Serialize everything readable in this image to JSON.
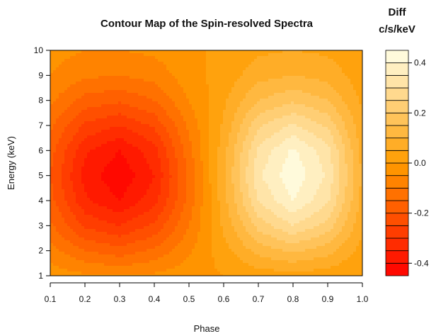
{
  "chart_data": {
    "type": "heatmap",
    "title": "Contour Map of the Spin-resolved Spectra",
    "xlabel": "Phase",
    "ylabel": "Energy (keV)",
    "xlim": [
      0.1,
      1.0
    ],
    "ylim": [
      1,
      10
    ],
    "x_ticks": [
      0.1,
      0.2,
      0.3,
      0.4,
      0.5,
      0.6,
      0.7,
      0.8,
      0.9,
      1.0
    ],
    "x_tick_labels": [
      "0.1",
      "0.2",
      "0.3",
      "0.4",
      "0.5",
      "0.6",
      "0.7",
      "0.8",
      "0.9",
      "1.0"
    ],
    "y_ticks": [
      1,
      2,
      3,
      4,
      5,
      6,
      7,
      8,
      9,
      10
    ],
    "y_tick_labels": [
      "1",
      "2",
      "3",
      "4",
      "5",
      "6",
      "7",
      "8",
      "9",
      "10"
    ],
    "x": [
      0.1,
      0.2,
      0.3,
      0.4,
      0.5,
      0.6,
      0.7,
      0.8,
      0.9,
      1.0
    ],
    "y": [
      1,
      2,
      3,
      4,
      5,
      6,
      7,
      8,
      9,
      10
    ],
    "z": [
      [
        -0.02,
        -0.04,
        -0.05,
        -0.04,
        -0.02,
        0.0,
        0.02,
        0.03,
        0.02,
        0.0
      ],
      [
        -0.08,
        -0.15,
        -0.18,
        -0.14,
        -0.06,
        0.03,
        0.12,
        0.16,
        0.12,
        0.03
      ],
      [
        -0.14,
        -0.26,
        -0.3,
        -0.24,
        -0.1,
        0.06,
        0.22,
        0.3,
        0.23,
        0.06
      ],
      [
        -0.18,
        -0.34,
        -0.4,
        -0.32,
        -0.13,
        0.08,
        0.3,
        0.4,
        0.31,
        0.08
      ],
      [
        -0.2,
        -0.37,
        -0.44,
        -0.35,
        -0.14,
        0.09,
        0.34,
        0.44,
        0.34,
        0.09
      ],
      [
        -0.18,
        -0.34,
        -0.4,
        -0.32,
        -0.12,
        0.08,
        0.31,
        0.41,
        0.32,
        0.08
      ],
      [
        -0.14,
        -0.26,
        -0.3,
        -0.24,
        -0.09,
        0.06,
        0.24,
        0.31,
        0.24,
        0.06
      ],
      [
        -0.09,
        -0.17,
        -0.19,
        -0.15,
        -0.05,
        0.04,
        0.15,
        0.19,
        0.15,
        0.04
      ],
      [
        -0.05,
        -0.09,
        -0.1,
        -0.08,
        -0.02,
        0.02,
        0.08,
        0.1,
        0.08,
        0.02
      ],
      [
        -0.03,
        -0.05,
        -0.05,
        -0.04,
        -0.01,
        0.01,
        0.04,
        0.05,
        0.04,
        0.01
      ]
    ],
    "zlim": [
      -0.45,
      0.45
    ],
    "colorbar": {
      "title_line1": "Diff",
      "title_line2": "c/s/keV",
      "levels": 18,
      "ticks": [
        0.4,
        0.2,
        0.0,
        -0.2,
        -0.4
      ],
      "tick_labels": [
        "0.4",
        "0.2",
        "0.0",
        "-0.2",
        "-0.4"
      ],
      "color_low": "#ff0000",
      "color_mid": "#ff9d00",
      "color_high": "#ffffe8"
    },
    "grid": false,
    "legend": "right"
  }
}
